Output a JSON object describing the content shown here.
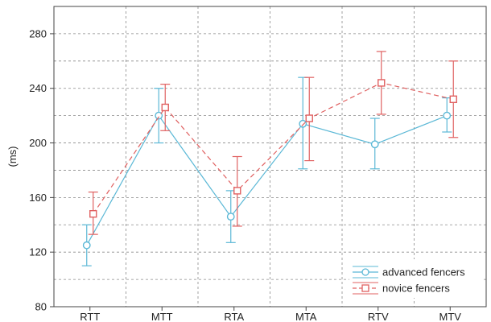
{
  "chart_data": {
    "type": "line",
    "title": "",
    "xlabel": "",
    "ylabel": "(ms)",
    "categories": [
      "RTT",
      "MTT",
      "RTA",
      "MTA",
      "RTV",
      "MTV"
    ],
    "ylim": [
      80,
      300
    ],
    "yticks": [
      80,
      120,
      160,
      200,
      240,
      280
    ],
    "grid": true,
    "grid_style": "dashed",
    "legend_position": "bottom-right",
    "series": [
      {
        "name": "advanced fencers",
        "color": "#5bb8d6",
        "line_style": "solid",
        "marker": "circle",
        "values": [
          125,
          220,
          146,
          214,
          199,
          220
        ],
        "error_low": [
          110,
          200,
          127,
          181,
          181,
          208
        ],
        "error_high": [
          140,
          240,
          165,
          248,
          218,
          233
        ]
      },
      {
        "name": "novice fencers",
        "color": "#e06060",
        "line_style": "dashed",
        "marker": "square",
        "values": [
          148,
          226,
          165,
          218,
          244,
          232
        ],
        "error_low": [
          133,
          209,
          139,
          187,
          221,
          204
        ],
        "error_high": [
          164,
          243,
          190,
          248,
          267,
          260
        ]
      }
    ]
  }
}
